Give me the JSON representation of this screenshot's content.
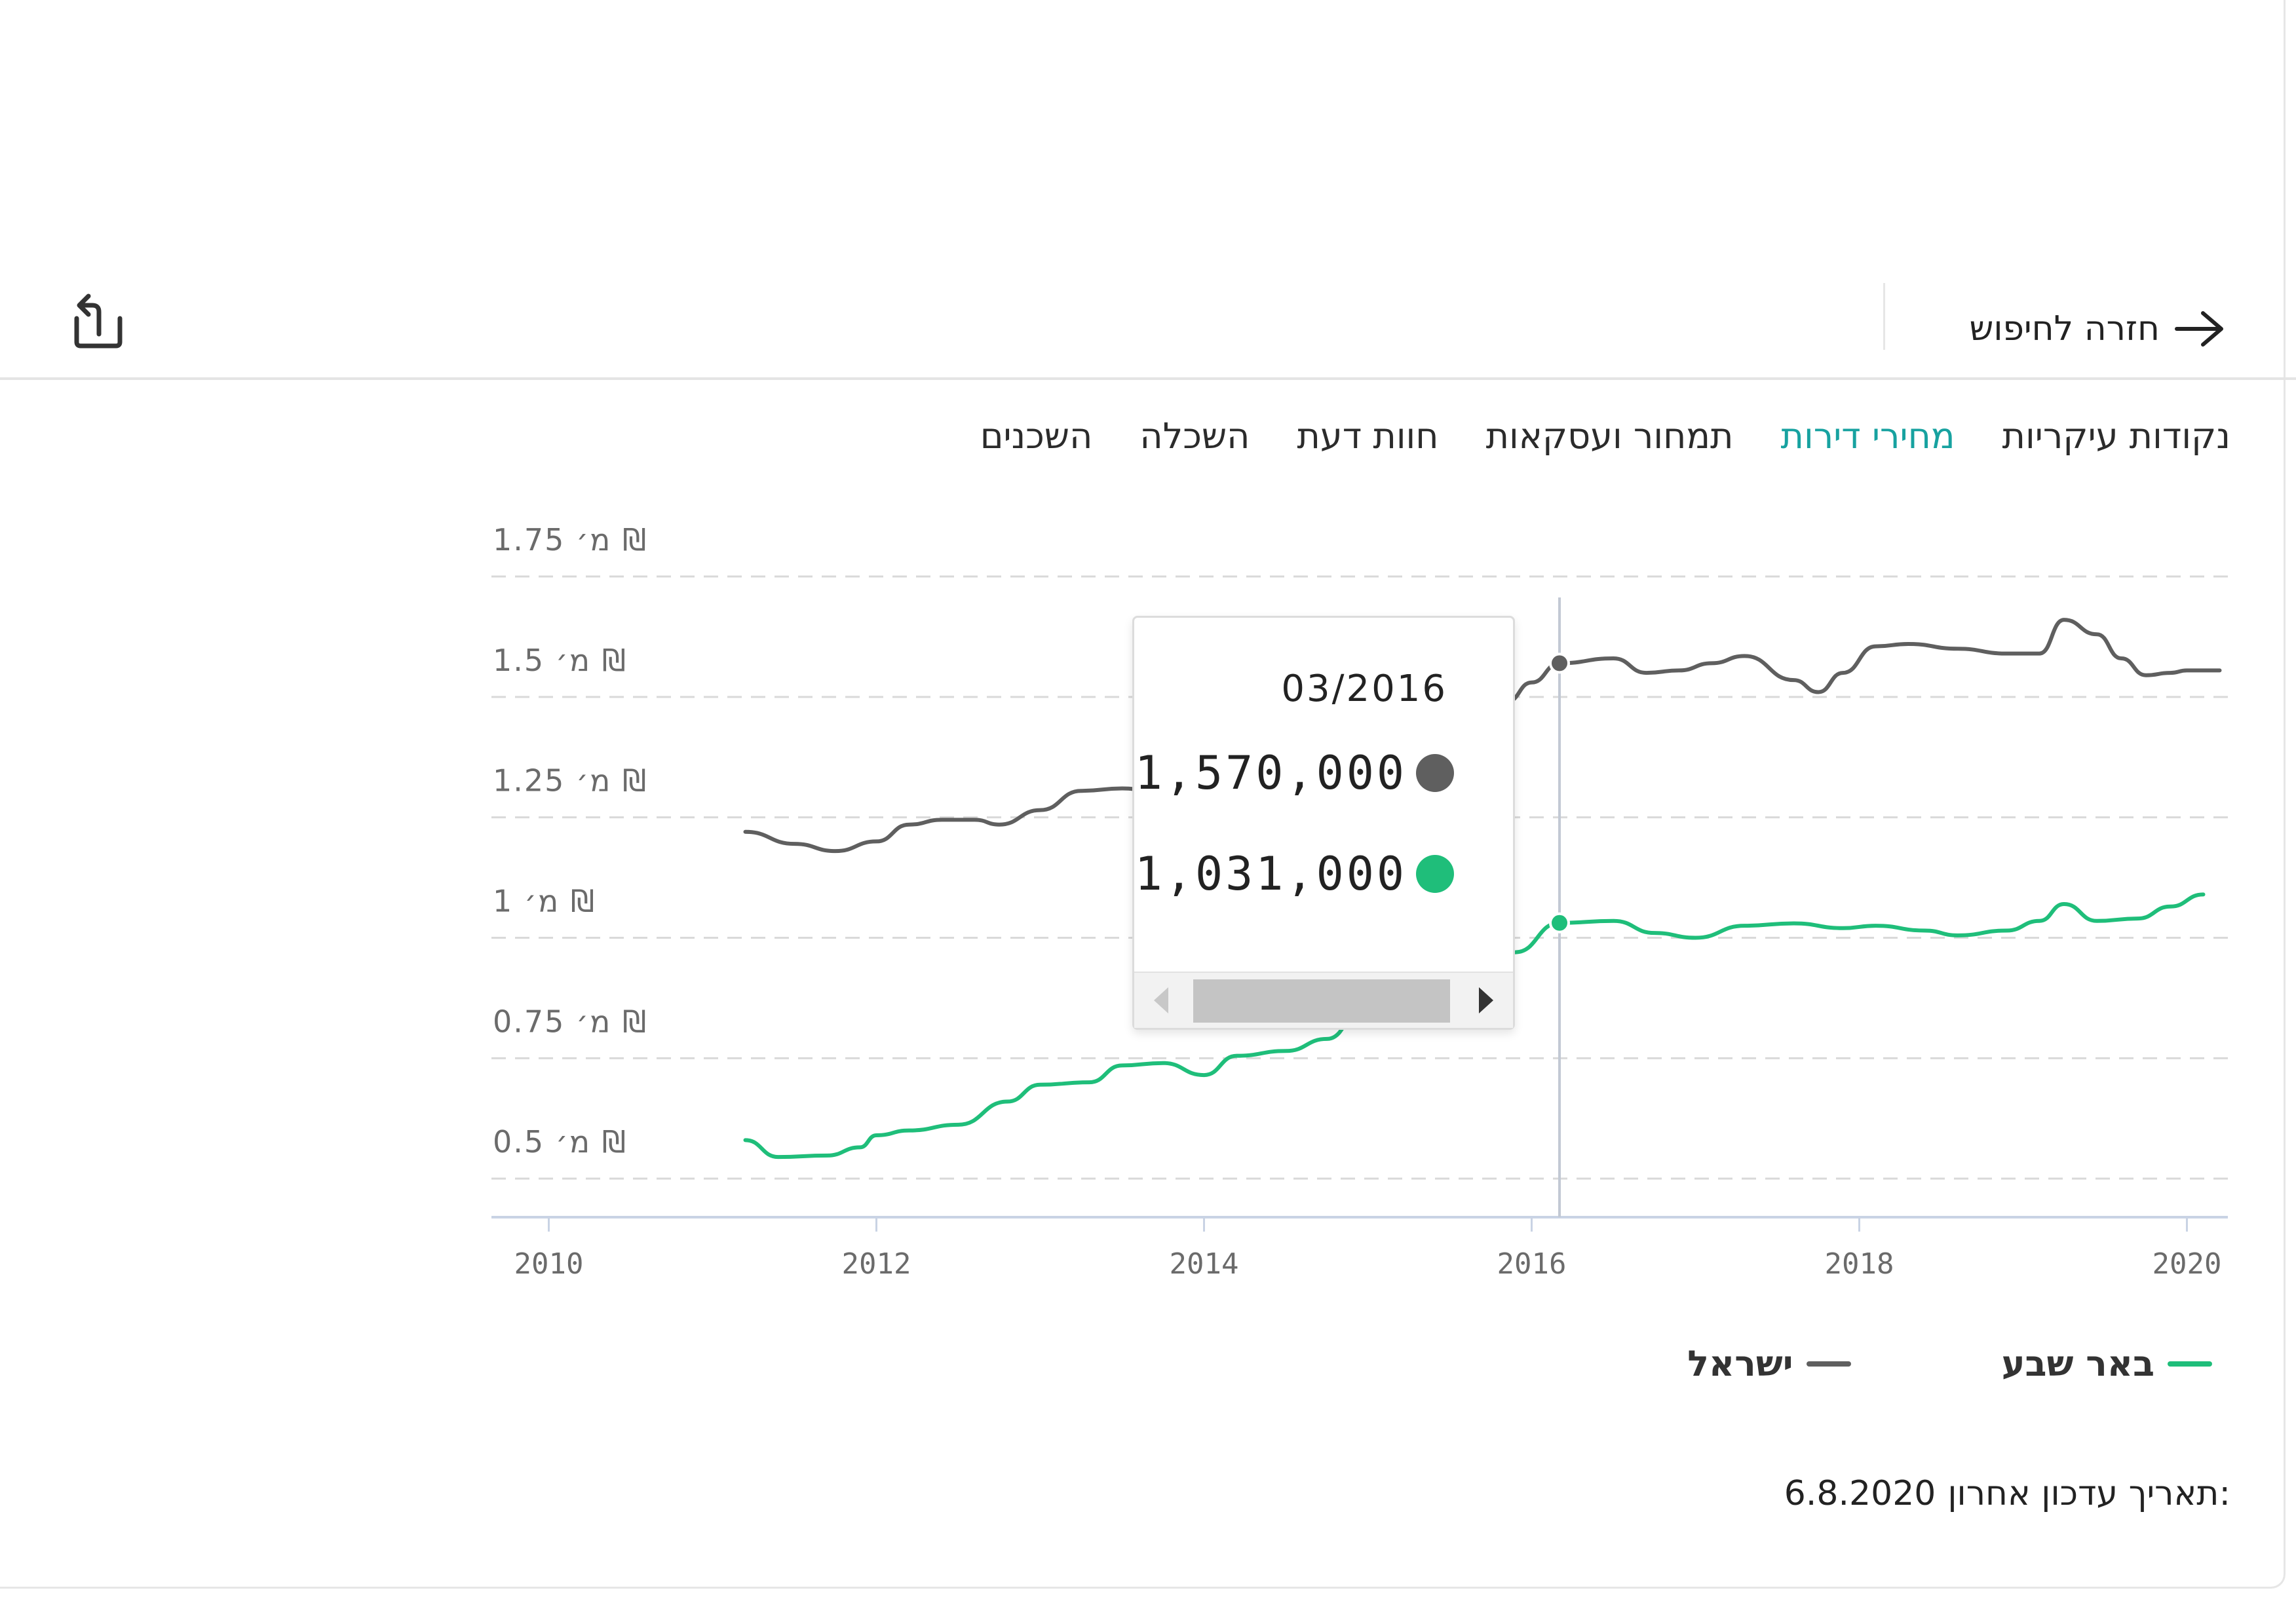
{
  "header": {
    "back_label": "חזרה לחיפוש",
    "back_icon": "arrow-right-icon",
    "share_icon": "share-icon"
  },
  "tabs": [
    {
      "label": "נקודות עיקריות",
      "active": false
    },
    {
      "label": "מחירי דירות",
      "active": true
    },
    {
      "label": "תמחור ועסקאות",
      "active": false
    },
    {
      "label": "חוות דעת",
      "active": false
    },
    {
      "label": "השכלה",
      "active": false
    },
    {
      "label": "השכנים",
      "active": false
    }
  ],
  "colors": {
    "israel": "#5f5f5f",
    "beersheva": "#1fbe7a",
    "active_tab": "#17a2a0"
  },
  "chart_data": {
    "type": "line",
    "x_ticks": [
      "2010",
      "2012",
      "2014",
      "2016",
      "2018",
      "2020"
    ],
    "y_ticks": [
      {
        "value": 0.5,
        "label": "0.5 מ׳ ₪"
      },
      {
        "value": 0.75,
        "label": "0.75 מ׳ ₪"
      },
      {
        "value": 1.0,
        "label": "1 מ׳ ₪"
      },
      {
        "value": 1.25,
        "label": "1.25 מ׳ ₪"
      },
      {
        "value": 1.5,
        "label": "1.5 מ׳ ₪"
      },
      {
        "value": 1.75,
        "label": "1.75 מ׳ ₪"
      }
    ],
    "xlim": [
      2009.65,
      2020.25
    ],
    "ylim": [
      0.42,
      1.75
    ],
    "grid": true,
    "legend_position": "bottom-right",
    "series": [
      {
        "name": "ישראל",
        "color": "#5f5f5f",
        "points": [
          [
            2011.2,
            1.22
          ],
          [
            2011.5,
            1.195
          ],
          [
            2011.75,
            1.18
          ],
          [
            2012.0,
            1.2
          ],
          [
            2012.2,
            1.235
          ],
          [
            2012.4,
            1.245
          ],
          [
            2012.6,
            1.245
          ],
          [
            2012.75,
            1.235
          ],
          [
            2013.0,
            1.265
          ],
          [
            2013.25,
            1.305
          ],
          [
            2013.5,
            1.31
          ],
          [
            2013.75,
            1.3
          ],
          [
            2014.0,
            1.29
          ],
          [
            2014.5,
            1.3
          ],
          [
            2015.0,
            1.33
          ],
          [
            2015.5,
            1.38
          ],
          [
            2015.85,
            1.49
          ],
          [
            2016.0,
            1.53
          ],
          [
            2016.17,
            1.57
          ],
          [
            2016.5,
            1.58
          ],
          [
            2016.7,
            1.55
          ],
          [
            2016.9,
            1.555
          ],
          [
            2017.1,
            1.57
          ],
          [
            2017.3,
            1.585
          ],
          [
            2017.6,
            1.535
          ],
          [
            2017.75,
            1.51
          ],
          [
            2017.9,
            1.55
          ],
          [
            2018.1,
            1.605
          ],
          [
            2018.3,
            1.61
          ],
          [
            2018.6,
            1.6
          ],
          [
            2018.9,
            1.59
          ],
          [
            2019.1,
            1.59
          ],
          [
            2019.25,
            1.66
          ],
          [
            2019.45,
            1.63
          ],
          [
            2019.6,
            1.58
          ],
          [
            2019.75,
            1.545
          ],
          [
            2019.9,
            1.55
          ],
          [
            2020.0,
            1.555
          ],
          [
            2020.2,
            1.555
          ]
        ]
      },
      {
        "name": "באר שבע",
        "color": "#1fbe7a",
        "points": [
          [
            2011.2,
            0.58
          ],
          [
            2011.4,
            0.545
          ],
          [
            2011.7,
            0.548
          ],
          [
            2011.9,
            0.565
          ],
          [
            2012.0,
            0.59
          ],
          [
            2012.2,
            0.6
          ],
          [
            2012.5,
            0.612
          ],
          [
            2012.8,
            0.66
          ],
          [
            2013.0,
            0.695
          ],
          [
            2013.3,
            0.7
          ],
          [
            2013.5,
            0.735
          ],
          [
            2013.75,
            0.74
          ],
          [
            2014.0,
            0.715
          ],
          [
            2014.2,
            0.755
          ],
          [
            2014.5,
            0.765
          ],
          [
            2014.75,
            0.79
          ],
          [
            2015.0,
            0.87
          ],
          [
            2015.5,
            0.93
          ],
          [
            2015.9,
            0.97
          ],
          [
            2016.17,
            1.031
          ],
          [
            2016.5,
            1.035
          ],
          [
            2016.75,
            1.01
          ],
          [
            2017.0,
            1.0
          ],
          [
            2017.3,
            1.025
          ],
          [
            2017.6,
            1.03
          ],
          [
            2017.9,
            1.02
          ],
          [
            2018.1,
            1.025
          ],
          [
            2018.4,
            1.015
          ],
          [
            2018.6,
            1.005
          ],
          [
            2018.9,
            1.015
          ],
          [
            2019.1,
            1.035
          ],
          [
            2019.25,
            1.07
          ],
          [
            2019.45,
            1.035
          ],
          [
            2019.7,
            1.04
          ],
          [
            2019.9,
            1.065
          ],
          [
            2020.1,
            1.09
          ]
        ]
      }
    ],
    "tooltip": {
      "date": "03/2016",
      "x": 2016.17,
      "values": [
        {
          "series": "ישראל",
          "value": "1,570,000",
          "y": 1.57
        },
        {
          "series": "באר שבע",
          "value": "1,031,000",
          "y": 1.031
        }
      ]
    }
  },
  "legend": [
    {
      "label": "באר שבע",
      "color": "#1fbe7a"
    },
    {
      "label": "ישראל",
      "color": "#5f5f5f"
    }
  ],
  "footer": {
    "updated_label": "תאריך עדכון אחרון:",
    "updated_date": "6.8.2020"
  }
}
